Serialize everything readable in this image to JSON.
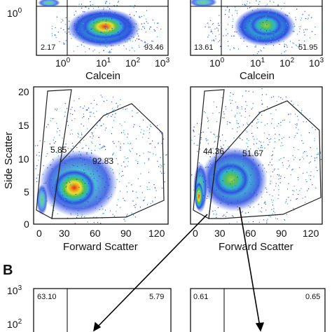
{
  "panel_letter": "B",
  "chart_data": [
    {
      "type": "scatter",
      "panel": "top-left calcein histogram (cropped)",
      "xlabel": "Calcein",
      "x_scale": "log",
      "x_ticks": [
        "10^0",
        "10^1",
        "10^2",
        "10^3"
      ],
      "y_ticks": [
        "10^0"
      ],
      "quadrant_values": {
        "bottom-left": "2.17",
        "bottom-right": "93.46"
      }
    },
    {
      "type": "scatter",
      "panel": "top-right calcein histogram (cropped)",
      "xlabel": "Calcein",
      "x_scale": "log",
      "x_ticks": [
        "10^0",
        "10^1",
        "10^2",
        "10^3"
      ],
      "quadrant_values": {
        "bottom-left": "13.61",
        "bottom-right": "51.95"
      }
    },
    {
      "type": "scatter",
      "panel": "middle-left FSC/SSC",
      "xlabel": "Forward Scatter",
      "ylabel": "Side Scatter",
      "x_ticks": [
        "0",
        "30",
        "60",
        "90",
        "120"
      ],
      "y_ticks": [
        "0",
        "5",
        "10",
        "15",
        "20"
      ],
      "xlim": [
        0,
        130
      ],
      "ylim": [
        0,
        21
      ],
      "gates": [
        {
          "label": "5.85"
        },
        {
          "label": "92.83"
        }
      ]
    },
    {
      "type": "scatter",
      "panel": "middle-right FSC/SSC",
      "xlabel": "Forward Scatter",
      "x_ticks": [
        "0",
        "30",
        "60",
        "90",
        "120"
      ],
      "xlim": [
        0,
        130
      ],
      "ylim": [
        0,
        21
      ],
      "gates": [
        {
          "label": "44.36"
        },
        {
          "label": "51.67"
        }
      ]
    },
    {
      "type": "scatter",
      "panel": "bottom-left (cropped)",
      "y_ticks": [
        "10^3",
        "10^2"
      ],
      "quadrant_values": {
        "top-left": "63.10",
        "top-right": "5.79"
      }
    },
    {
      "type": "scatter",
      "panel": "bottom-right (cropped)",
      "quadrant_values": {
        "top-left": "0.61",
        "top-right": "0.65"
      }
    }
  ]
}
